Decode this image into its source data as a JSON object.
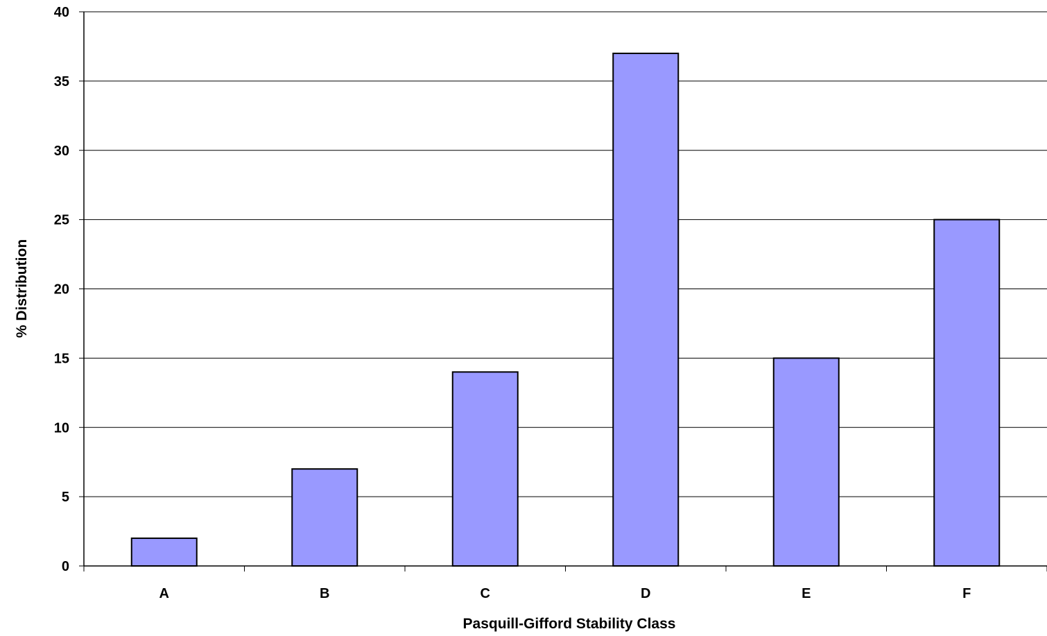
{
  "chart_data": {
    "type": "bar",
    "categories": [
      "A",
      "B",
      "C",
      "D",
      "E",
      "F"
    ],
    "values": [
      2,
      7,
      14,
      37,
      15,
      25
    ],
    "title": "",
    "xlabel": "Pasquill-Gifford Stability Class",
    "ylabel": "% Distribution",
    "ylim": [
      0,
      40
    ],
    "yticks": [
      0,
      5,
      10,
      15,
      20,
      25,
      30,
      35,
      40
    ],
    "grid": true,
    "legend": "none",
    "bar_color": "#9999ff",
    "bar_stroke": "#000000"
  }
}
